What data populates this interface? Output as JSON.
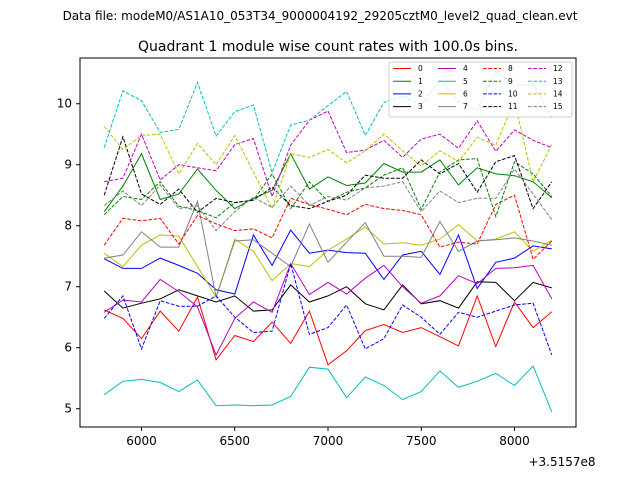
{
  "chart_data": {
    "type": "line",
    "suptitle": "Data file: modeM0/AS1A10_053T34_9000004192_29205cztM0_level2_quad_clean.evt",
    "title": "Quadrant 1 module wise count rates with 100.0s bins.",
    "xlabel": "",
    "ylabel": "",
    "x_offset_label": "+3.5157e8",
    "xlim": [
      5670,
      8330
    ],
    "ylim": [
      4.7,
      10.75
    ],
    "xticks": [
      6000,
      6500,
      7000,
      7500,
      8000
    ],
    "yticks": [
      5,
      6,
      7,
      8,
      9,
      10
    ],
    "grid": false,
    "legend_position": "top-right",
    "x": [
      5800,
      5900,
      6000,
      6100,
      6200,
      6300,
      6400,
      6500,
      6600,
      6700,
      6800,
      6900,
      7000,
      7100,
      7200,
      7300,
      7400,
      7500,
      7600,
      7700,
      7800,
      7900,
      8000,
      8100,
      8200
    ],
    "series": [
      {
        "name": "0",
        "color": "#ff0000",
        "dash": "solid",
        "values": [
          6.62,
          6.48,
          6.15,
          6.6,
          6.27,
          6.83,
          5.8,
          6.2,
          6.1,
          6.42,
          6.07,
          6.6,
          5.72,
          5.95,
          6.28,
          6.38,
          6.25,
          6.33,
          6.18,
          6.03,
          6.85,
          6.02,
          6.75,
          6.33,
          6.59
        ]
      },
      {
        "name": "1",
        "color": "#008000",
        "dash": "solid",
        "values": [
          8.23,
          8.65,
          9.18,
          8.43,
          8.52,
          8.93,
          8.58,
          8.28,
          8.45,
          8.58,
          9.18,
          8.6,
          8.8,
          8.66,
          8.7,
          9.02,
          8.88,
          8.88,
          9.08,
          8.67,
          8.95,
          8.85,
          8.82,
          8.72,
          8.46
        ]
      },
      {
        "name": "2",
        "color": "#0000ff",
        "dash": "solid",
        "values": [
          7.46,
          7.3,
          7.3,
          7.47,
          7.35,
          7.22,
          6.95,
          6.88,
          7.85,
          7.35,
          7.93,
          7.55,
          7.6,
          7.56,
          7.55,
          7.12,
          7.52,
          7.58,
          7.2,
          7.85,
          6.97,
          7.4,
          7.47,
          7.67,
          7.62
        ]
      },
      {
        "name": "3",
        "color": "#000000",
        "dash": "solid",
        "values": [
          6.93,
          6.65,
          6.73,
          6.8,
          6.95,
          6.85,
          6.75,
          6.85,
          6.6,
          6.62,
          7.03,
          6.75,
          6.85,
          7.0,
          6.72,
          6.62,
          7.03,
          6.72,
          6.77,
          6.65,
          7.08,
          7.07,
          6.77,
          7.07,
          6.98
        ]
      },
      {
        "name": "4",
        "color": "#bf00bf",
        "dash": "solid",
        "values": [
          6.58,
          6.78,
          6.75,
          7.12,
          6.92,
          6.67,
          5.88,
          6.48,
          6.75,
          6.58,
          7.38,
          6.87,
          7.07,
          6.88,
          7.14,
          7.35,
          7.0,
          6.73,
          6.85,
          7.18,
          7.05,
          7.3,
          7.31,
          7.35,
          6.8
        ]
      },
      {
        "name": "5",
        "color": "#00bfbf",
        "dash": "solid",
        "values": [
          5.23,
          5.45,
          5.48,
          5.43,
          5.28,
          5.47,
          5.05,
          5.06,
          5.05,
          5.06,
          5.2,
          5.68,
          5.65,
          5.18,
          5.52,
          5.38,
          5.15,
          5.28,
          5.62,
          5.35,
          5.45,
          5.58,
          5.38,
          5.7,
          4.95
        ]
      },
      {
        "name": "6",
        "color": "#bfbf00",
        "dash": "solid",
        "values": [
          7.55,
          7.33,
          7.68,
          7.85,
          7.83,
          7.33,
          6.83,
          7.78,
          7.58,
          7.1,
          7.38,
          7.33,
          7.6,
          7.78,
          7.98,
          7.7,
          7.72,
          7.68,
          7.78,
          8.02,
          7.75,
          7.78,
          7.9,
          7.58,
          7.76
        ]
      },
      {
        "name": "7",
        "color": "#808080",
        "dash": "solid",
        "values": [
          7.47,
          7.52,
          7.9,
          7.65,
          7.65,
          8.4,
          6.83,
          7.75,
          7.77,
          7.55,
          7.33,
          8.03,
          7.4,
          7.73,
          8.05,
          7.5,
          7.5,
          7.48,
          8.07,
          7.58,
          7.75,
          7.77,
          7.8,
          7.75,
          7.68
        ]
      },
      {
        "name": "8",
        "color": "#ff0000",
        "dash": "dashed",
        "values": [
          7.68,
          8.12,
          8.08,
          8.12,
          7.7,
          8.17,
          8.03,
          7.92,
          7.95,
          7.8,
          8.45,
          8.35,
          8.27,
          8.18,
          8.35,
          8.28,
          8.25,
          8.18,
          7.65,
          7.73,
          7.7,
          8.35,
          8.5,
          7.45,
          7.75
        ]
      },
      {
        "name": "9",
        "color": "#008000",
        "dash": "dashed",
        "values": [
          8.18,
          8.48,
          8.43,
          8.72,
          8.32,
          8.25,
          8.13,
          8.38,
          8.42,
          8.85,
          8.28,
          8.72,
          8.4,
          8.55,
          8.62,
          8.83,
          8.95,
          8.27,
          8.88,
          9.08,
          9.1,
          8.15,
          9.05,
          8.85,
          8.48
        ]
      },
      {
        "name": "10",
        "color": "#0000ff",
        "dash": "dashed",
        "values": [
          6.48,
          6.85,
          5.98,
          6.77,
          6.68,
          6.68,
          6.85,
          6.5,
          6.25,
          6.27,
          7.38,
          6.22,
          6.33,
          6.7,
          5.98,
          6.15,
          6.7,
          6.5,
          6.22,
          6.58,
          6.5,
          6.6,
          6.7,
          6.73,
          5.88
        ]
      },
      {
        "name": "11",
        "color": "#000000",
        "dash": "dashed",
        "values": [
          8.5,
          9.46,
          8.52,
          8.35,
          8.6,
          8.22,
          8.45,
          8.38,
          8.42,
          8.63,
          8.33,
          8.28,
          8.4,
          8.5,
          8.83,
          8.78,
          8.78,
          9.08,
          8.85,
          9.02,
          8.55,
          9.05,
          9.15,
          8.28,
          8.72
        ]
      },
      {
        "name": "12",
        "color": "#bf00bf",
        "dash": "dashed",
        "values": [
          8.72,
          8.78,
          9.5,
          8.75,
          9.0,
          8.95,
          8.9,
          9.33,
          9.43,
          8.48,
          9.32,
          9.73,
          9.88,
          9.2,
          9.24,
          9.4,
          9.12,
          9.42,
          9.5,
          9.27,
          9.72,
          9.22,
          9.57,
          9.4,
          9.28
        ]
      },
      {
        "name": "13",
        "color": "#00bfbf",
        "dash": "dashed",
        "values": [
          9.28,
          10.21,
          10.05,
          9.53,
          9.58,
          10.35,
          9.47,
          9.87,
          9.98,
          8.87,
          9.65,
          9.73,
          9.97,
          10.2,
          9.48,
          10.02,
          10.13,
          9.97,
          10.4,
          10.03,
          9.9,
          10.53,
          10.3,
          10.33,
          9.77
        ]
      },
      {
        "name": "14",
        "color": "#bfbf00",
        "dash": "dashed",
        "values": [
          9.63,
          9.25,
          9.48,
          9.5,
          8.85,
          9.35,
          9.0,
          9.48,
          8.88,
          8.28,
          9.18,
          9.12,
          9.25,
          9.03,
          9.23,
          9.5,
          9.23,
          8.98,
          9.23,
          9.05,
          9.45,
          9.32,
          10.05,
          8.72,
          9.33
        ]
      },
      {
        "name": "15",
        "color": "#808080",
        "dash": "dashed",
        "values": [
          8.33,
          8.57,
          8.33,
          8.67,
          8.28,
          8.33,
          7.92,
          8.23,
          8.47,
          8.3,
          8.65,
          8.33,
          8.48,
          8.42,
          8.62,
          8.65,
          8.72,
          8.23,
          8.57,
          8.38,
          8.45,
          8.45,
          8.93,
          8.52,
          8.1
        ]
      }
    ]
  }
}
